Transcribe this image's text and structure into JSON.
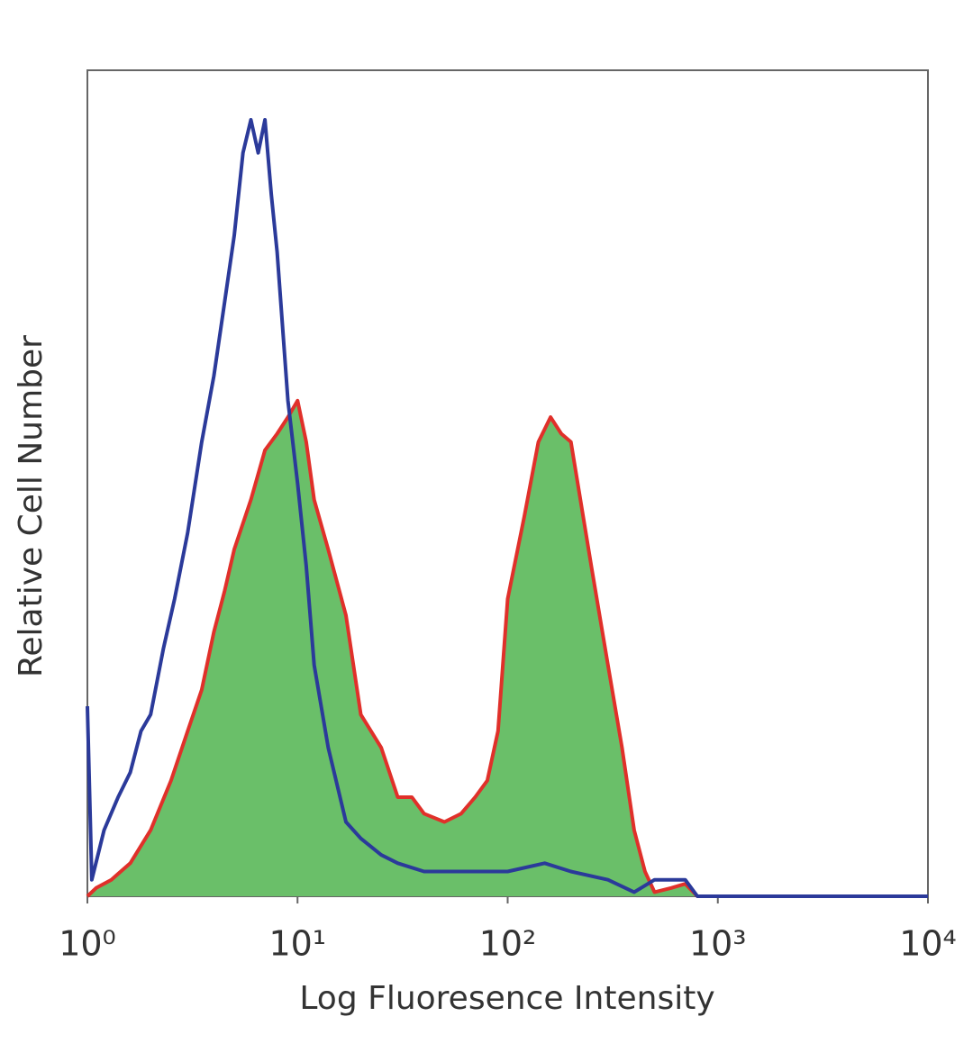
{
  "chart_data": {
    "type": "histogram-overlay",
    "xlabel": "Log Fluoresence Intensity",
    "ylabel": "Relative Cell Number",
    "xscale": "log",
    "xlim": [
      1,
      10000
    ],
    "xticks": [
      {
        "value": 1,
        "label": "10⁰"
      },
      {
        "value": 10,
        "label": "10¹"
      },
      {
        "value": 100,
        "label": "10²"
      },
      {
        "value": 1000,
        "label": "10³"
      },
      {
        "value": 10000,
        "label": "10⁴"
      }
    ],
    "ylim": [
      0,
      100
    ],
    "series": [
      {
        "color": "#e0302a",
        "fill": "#6abf69",
        "x": [
          1.0,
          1.1,
          1.3,
          1.6,
          2.0,
          2.5,
          3.0,
          3.5,
          4.0,
          4.5,
          5.0,
          6.0,
          7.0,
          8.0,
          9.0,
          10,
          11,
          12,
          14,
          17,
          20,
          25,
          30,
          35,
          40,
          50,
          60,
          70,
          80,
          90,
          100,
          120,
          140,
          160,
          180,
          200,
          250,
          300,
          350,
          400,
          450,
          500,
          600,
          700,
          800,
          10000
        ],
        "values": [
          0,
          1,
          2,
          4,
          8,
          14,
          20,
          25,
          32,
          37,
          42,
          48,
          54,
          56,
          58,
          60,
          55,
          48,
          42,
          34,
          22,
          18,
          12,
          12,
          10,
          9,
          10,
          12,
          14,
          20,
          36,
          46,
          55,
          58,
          56,
          55,
          40,
          28,
          18,
          8,
          3,
          0.5,
          1,
          1.5,
          0,
          0
        ]
      },
      {
        "color": "#2b3a9a",
        "x": [
          1.0,
          1.05,
          1.2,
          1.4,
          1.6,
          1.8,
          2.0,
          2.3,
          2.6,
          3.0,
          3.5,
          4.0,
          4.5,
          5.0,
          5.5,
          6.0,
          6.5,
          7.0,
          7.5,
          8.0,
          9.0,
          10,
          11,
          12,
          14,
          17,
          20,
          25,
          30,
          40,
          60,
          100,
          150,
          200,
          300,
          400,
          500,
          700,
          800,
          1000,
          10000
        ],
        "values": [
          23,
          2,
          8,
          12,
          15,
          20,
          22,
          30,
          36,
          44,
          55,
          63,
          72,
          80,
          90,
          94,
          90,
          94,
          85,
          78,
          60,
          50,
          40,
          28,
          18,
          9,
          7,
          5,
          4,
          3,
          3,
          3,
          4,
          3,
          2,
          0.5,
          2,
          2,
          0,
          0,
          0
        ]
      }
    ]
  }
}
